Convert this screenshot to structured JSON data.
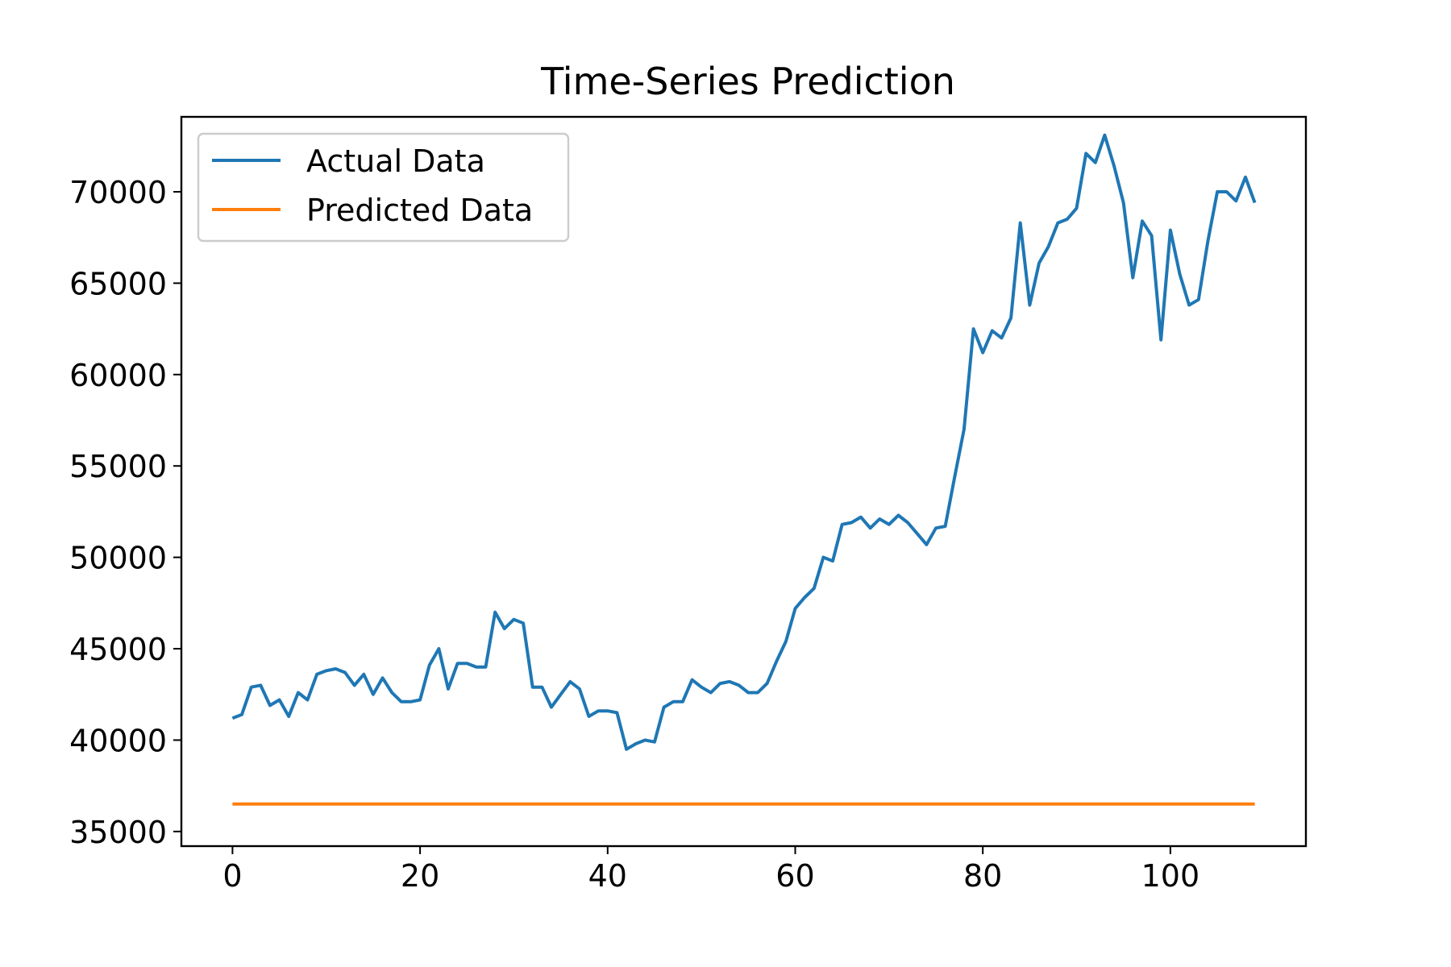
{
  "chart_data": {
    "type": "line",
    "title": "Time-Series Prediction",
    "xlabel": "",
    "ylabel": "",
    "xlim": [
      -5.45,
      114.45
    ],
    "ylim": [
      34200,
      74100
    ],
    "xticks": [
      0,
      20,
      40,
      60,
      80,
      100
    ],
    "yticks": [
      35000,
      40000,
      45000,
      50000,
      55000,
      60000,
      65000,
      70000
    ],
    "grid": false,
    "legend_position": "top-left",
    "series": [
      {
        "name": "Actual Data",
        "color": "#1f77b4",
        "x": [
          0,
          1,
          2,
          3,
          4,
          5,
          6,
          7,
          8,
          9,
          10,
          11,
          12,
          13,
          14,
          15,
          16,
          17,
          18,
          19,
          20,
          21,
          22,
          23,
          24,
          25,
          26,
          27,
          28,
          29,
          30,
          31,
          32,
          33,
          34,
          35,
          36,
          37,
          38,
          39,
          40,
          41,
          42,
          43,
          44,
          45,
          46,
          47,
          48,
          49,
          50,
          51,
          52,
          53,
          54,
          55,
          56,
          57,
          58,
          59,
          60,
          61,
          62,
          63,
          64,
          65,
          66,
          67,
          68,
          69,
          70,
          71,
          72,
          73,
          74,
          75,
          76,
          77,
          78,
          79,
          80,
          81,
          82,
          83,
          84,
          85,
          86,
          87,
          88,
          89,
          90,
          91,
          92,
          93,
          94,
          95,
          96,
          97,
          98,
          99,
          100,
          101,
          102,
          103,
          104,
          105,
          106,
          107,
          108,
          109
        ],
        "values": [
          41200,
          41400,
          42900,
          43000,
          41900,
          42200,
          41300,
          42600,
          42200,
          43600,
          43800,
          43900,
          43700,
          43000,
          43600,
          42500,
          43400,
          42600,
          42100,
          42100,
          42200,
          44100,
          45000,
          42800,
          44200,
          44200,
          44000,
          44000,
          47000,
          46100,
          46600,
          46400,
          42900,
          42900,
          41800,
          42500,
          43200,
          42800,
          41300,
          41600,
          41600,
          41500,
          39500,
          39800,
          40000,
          39900,
          41800,
          42100,
          42100,
          43300,
          42900,
          42600,
          43100,
          43200,
          43000,
          42600,
          42600,
          43100,
          44300,
          45400,
          47200,
          47800,
          48300,
          50000,
          49800,
          51800,
          51900,
          52200,
          51600,
          52100,
          51800,
          52300,
          51900,
          51300,
          50700,
          51600,
          51700,
          54400,
          57000,
          62500,
          61200,
          62400,
          62000,
          63100,
          68300,
          63800,
          66100,
          67000,
          68300,
          68500,
          69100,
          72100,
          71600,
          73100,
          71400,
          69400,
          65300,
          68400,
          67600,
          61900,
          67900,
          65500,
          63800,
          64100,
          67300,
          70000,
          70000,
          69500,
          70800,
          69400
        ]
      },
      {
        "name": "Predicted Data",
        "color": "#ff7f0e",
        "x": [
          0,
          109
        ],
        "values": [
          36500,
          36500
        ]
      }
    ]
  }
}
